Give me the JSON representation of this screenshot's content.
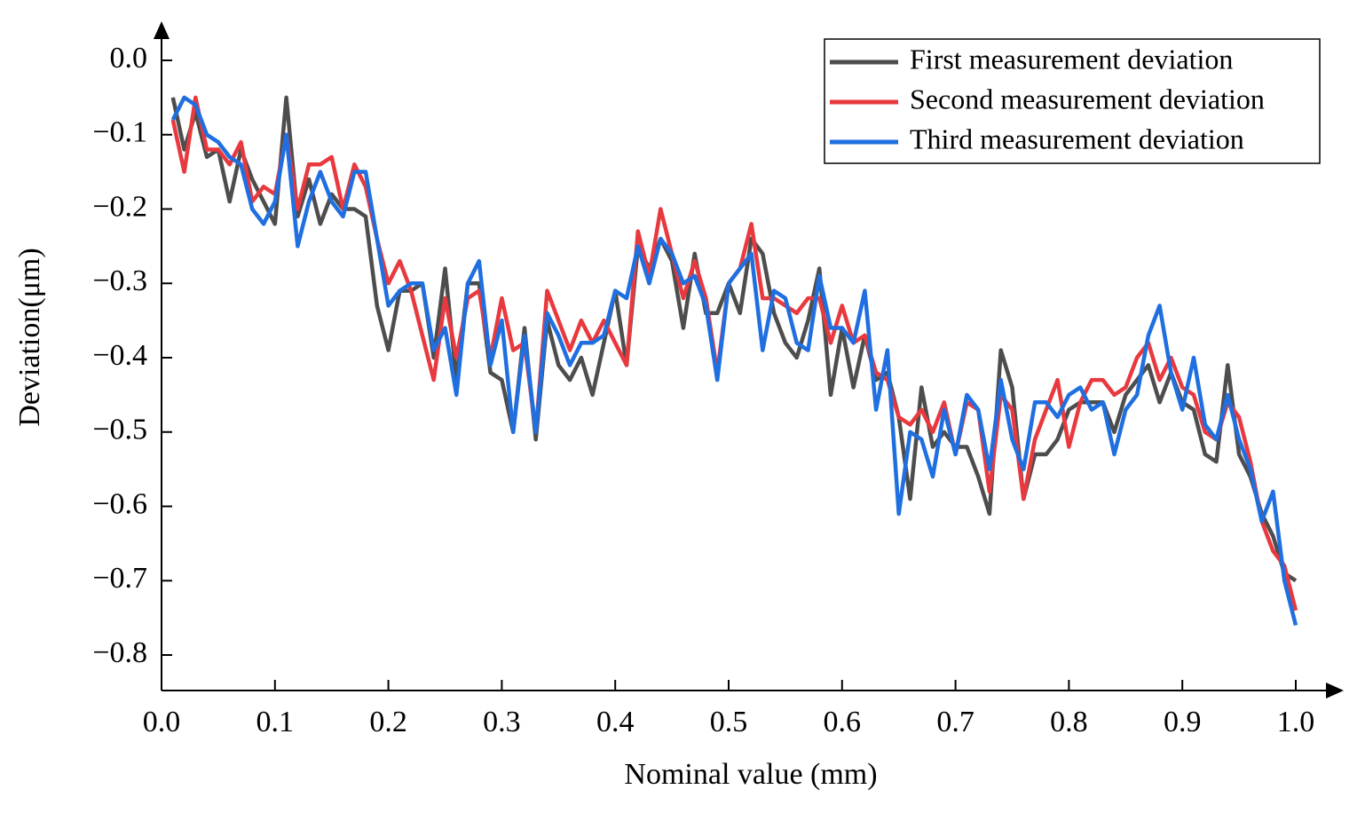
{
  "chart_data": {
    "type": "line",
    "x_label": "Nominal value (mm)",
    "y_label": "Deviation(μm)",
    "xlim": [
      0,
      1.03
    ],
    "ylim": [
      -0.85,
      0.05
    ],
    "xticks": [
      {
        "value": 0,
        "label": "0.0"
      },
      0.1,
      0.2,
      0.3,
      0.4,
      0.5,
      0.6,
      0.7,
      0.8,
      0.9,
      {
        "value": 1,
        "label": "1.0"
      }
    ],
    "yticks": [
      {
        "value": 0,
        "label": "0.0"
      },
      {
        "value": -0.1,
        "label": "−0.1"
      },
      {
        "value": -0.2,
        "label": "−0.2"
      },
      {
        "value": -0.3,
        "label": "−0.3"
      },
      {
        "value": -0.4,
        "label": "−0.4"
      },
      {
        "value": -0.5,
        "label": "−0.5"
      },
      {
        "value": -0.6,
        "label": "−0.6"
      },
      {
        "value": -0.7,
        "label": "−0.7"
      },
      {
        "value": -0.8,
        "label": "−0.8"
      }
    ],
    "legend": "upper right",
    "x": [
      0.01,
      0.02,
      0.03,
      0.04,
      0.05,
      0.06,
      0.07,
      0.08,
      0.09,
      0.1,
      0.11,
      0.12,
      0.13,
      0.14,
      0.15,
      0.16,
      0.17,
      0.18,
      0.19,
      0.2,
      0.21,
      0.22,
      0.23,
      0.24,
      0.25,
      0.26,
      0.27,
      0.28,
      0.29,
      0.3,
      0.31,
      0.32,
      0.33,
      0.34,
      0.35,
      0.36,
      0.37,
      0.38,
      0.39,
      0.4,
      0.41,
      0.42,
      0.43,
      0.44,
      0.45,
      0.46,
      0.47,
      0.48,
      0.49,
      0.5,
      0.51,
      0.52,
      0.53,
      0.54,
      0.55,
      0.56,
      0.57,
      0.58,
      0.59,
      0.6,
      0.61,
      0.62,
      0.63,
      0.64,
      0.65,
      0.66,
      0.67,
      0.68,
      0.69,
      0.7,
      0.71,
      0.72,
      0.73,
      0.74,
      0.75,
      0.76,
      0.77,
      0.78,
      0.79,
      0.8,
      0.81,
      0.82,
      0.83,
      0.84,
      0.85,
      0.86,
      0.87,
      0.88,
      0.89,
      0.9,
      0.91,
      0.92,
      0.93,
      0.94,
      0.95,
      0.96,
      0.97,
      0.98,
      0.99,
      1.0
    ],
    "series": [
      {
        "name": "First measurement deviation",
        "color": "#4d4d4d",
        "values": [
          -0.05,
          -0.12,
          -0.07,
          -0.13,
          -0.12,
          -0.19,
          -0.12,
          -0.16,
          -0.19,
          -0.22,
          -0.05,
          -0.21,
          -0.16,
          -0.22,
          -0.18,
          -0.2,
          -0.2,
          -0.21,
          -0.33,
          -0.39,
          -0.31,
          -0.31,
          -0.3,
          -0.4,
          -0.28,
          -0.43,
          -0.3,
          -0.3,
          -0.42,
          -0.43,
          -0.5,
          -0.36,
          -0.51,
          -0.35,
          -0.41,
          -0.43,
          -0.4,
          -0.45,
          -0.38,
          -0.31,
          -0.41,
          -0.25,
          -0.28,
          -0.24,
          -0.27,
          -0.36,
          -0.26,
          -0.34,
          -0.34,
          -0.3,
          -0.34,
          -0.24,
          -0.26,
          -0.34,
          -0.38,
          -0.4,
          -0.35,
          -0.28,
          -0.45,
          -0.36,
          -0.44,
          -0.37,
          -0.43,
          -0.42,
          -0.48,
          -0.59,
          -0.44,
          -0.52,
          -0.5,
          -0.52,
          -0.52,
          -0.56,
          -0.61,
          -0.39,
          -0.44,
          -0.59,
          -0.53,
          -0.53,
          -0.51,
          -0.47,
          -0.46,
          -0.46,
          -0.46,
          -0.5,
          -0.45,
          -0.43,
          -0.41,
          -0.46,
          -0.42,
          -0.46,
          -0.47,
          -0.53,
          -0.54,
          -0.41,
          -0.53,
          -0.56,
          -0.61,
          -0.64,
          -0.69,
          -0.7
        ]
      },
      {
        "name": "Second measurement deviation",
        "color": "#e8393f",
        "values": [
          -0.08,
          -0.15,
          -0.05,
          -0.12,
          -0.12,
          -0.14,
          -0.11,
          -0.19,
          -0.17,
          -0.18,
          -0.1,
          -0.2,
          -0.14,
          -0.14,
          -0.13,
          -0.2,
          -0.14,
          -0.17,
          -0.24,
          -0.3,
          -0.27,
          -0.31,
          -0.37,
          -0.43,
          -0.32,
          -0.4,
          -0.32,
          -0.31,
          -0.4,
          -0.32,
          -0.39,
          -0.38,
          -0.5,
          -0.31,
          -0.35,
          -0.39,
          -0.35,
          -0.38,
          -0.35,
          -0.38,
          -0.41,
          -0.23,
          -0.29,
          -0.2,
          -0.26,
          -0.32,
          -0.27,
          -0.32,
          -0.42,
          -0.3,
          -0.28,
          -0.22,
          -0.32,
          -0.32,
          -0.33,
          -0.34,
          -0.32,
          -0.32,
          -0.38,
          -0.33,
          -0.38,
          -0.37,
          -0.42,
          -0.43,
          -0.48,
          -0.49,
          -0.47,
          -0.5,
          -0.46,
          -0.53,
          -0.46,
          -0.47,
          -0.58,
          -0.45,
          -0.47,
          -0.59,
          -0.51,
          -0.47,
          -0.43,
          -0.52,
          -0.46,
          -0.43,
          -0.43,
          -0.45,
          -0.44,
          -0.4,
          -0.38,
          -0.43,
          -0.4,
          -0.44,
          -0.45,
          -0.5,
          -0.51,
          -0.46,
          -0.48,
          -0.54,
          -0.62,
          -0.66,
          -0.68,
          -0.74
        ]
      },
      {
        "name": "Third measurement deviation",
        "color": "#1f6fe0",
        "values": [
          -0.08,
          -0.05,
          -0.06,
          -0.1,
          -0.11,
          -0.13,
          -0.14,
          -0.2,
          -0.22,
          -0.19,
          -0.1,
          -0.25,
          -0.19,
          -0.15,
          -0.19,
          -0.21,
          -0.15,
          -0.15,
          -0.24,
          -0.33,
          -0.31,
          -0.3,
          -0.3,
          -0.39,
          -0.36,
          -0.45,
          -0.3,
          -0.27,
          -0.41,
          -0.35,
          -0.5,
          -0.37,
          -0.5,
          -0.34,
          -0.37,
          -0.41,
          -0.38,
          -0.38,
          -0.37,
          -0.31,
          -0.32,
          -0.25,
          -0.3,
          -0.24,
          -0.26,
          -0.3,
          -0.29,
          -0.33,
          -0.43,
          -0.3,
          -0.28,
          -0.26,
          -0.39,
          -0.31,
          -0.32,
          -0.38,
          -0.39,
          -0.29,
          -0.36,
          -0.36,
          -0.38,
          -0.31,
          -0.47,
          -0.39,
          -0.61,
          -0.5,
          -0.51,
          -0.56,
          -0.47,
          -0.53,
          -0.45,
          -0.47,
          -0.55,
          -0.43,
          -0.51,
          -0.55,
          -0.46,
          -0.46,
          -0.48,
          -0.45,
          -0.44,
          -0.47,
          -0.46,
          -0.53,
          -0.47,
          -0.45,
          -0.37,
          -0.33,
          -0.42,
          -0.47,
          -0.4,
          -0.49,
          -0.51,
          -0.45,
          -0.51,
          -0.55,
          -0.62,
          -0.58,
          -0.7,
          -0.76
        ]
      }
    ]
  }
}
